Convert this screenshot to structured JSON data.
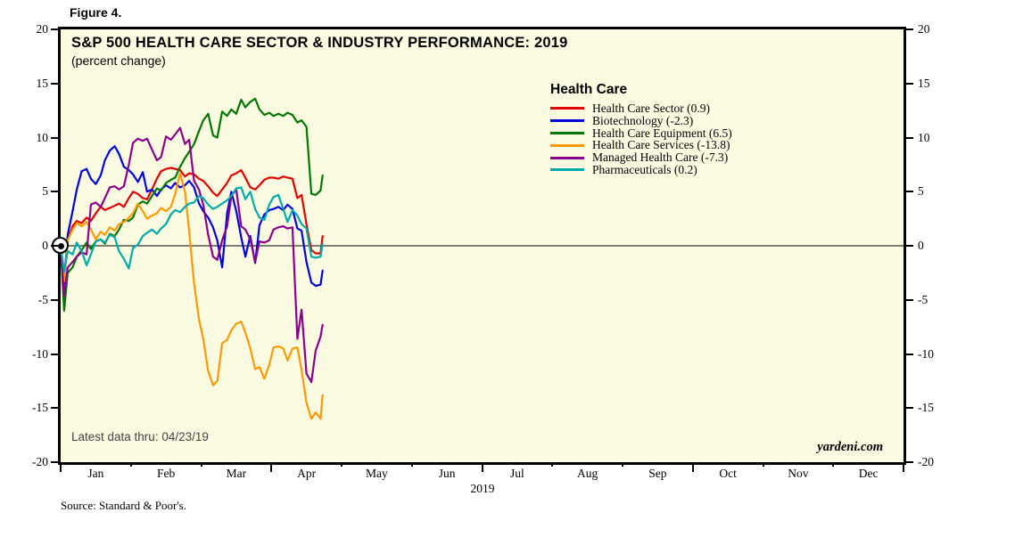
{
  "figure_label": "Figure 4.",
  "header": {
    "title": "S&P 500 HEALTH CARE SECTOR & INDUSTRY PERFORMANCE: 2019",
    "subtitle": "(percent change)"
  },
  "annotations": {
    "latest_data": "Latest data thru: 04/23/19",
    "watermark": "yardeni.com",
    "source": "Source: Standard & Poor's."
  },
  "legend": {
    "heading": "Health Care",
    "items": [
      {
        "label": "Health Care Sector (0.9)",
        "color": "#e00000"
      },
      {
        "label": "Biotechnology (-2.3)",
        "color": "#0000dd"
      },
      {
        "label": "Health Care Equipment (6.5)",
        "color": "#007700"
      },
      {
        "label": "Health Care Services (-13.8)",
        "color": "#ff9900"
      },
      {
        "label": "Managed Health Care (-7.3)",
        "color": "#8b008b"
      },
      {
        "label": "Pharmaceuticals (0.2)",
        "color": "#00aaaa"
      }
    ]
  },
  "axes": {
    "y_ticks": [
      20,
      15,
      10,
      5,
      0,
      -5,
      -10,
      -15,
      -20
    ],
    "ylim": [
      -20,
      20
    ],
    "months": [
      "Jan",
      "Feb",
      "Mar",
      "Apr",
      "May",
      "Jun",
      "Jul",
      "Aug",
      "Sep",
      "Oct",
      "Nov",
      "Dec"
    ],
    "major_tick_boundaries": [
      0,
      3,
      6,
      9,
      12
    ],
    "year_label": "2019",
    "grid": "off",
    "zero_line": true
  },
  "chart_data": {
    "type": "line",
    "title": "S&P 500 HEALTH CARE SECTOR & INDUSTRY PERFORMANCE: 2019",
    "ylabel": "percent change",
    "x_unit": "months since Jan 1 2019 (data through Apr 23 2019)",
    "xlim_months": [
      0,
      12
    ],
    "ylim": [
      -20,
      20
    ],
    "start_marker": {
      "x": 0,
      "y": 0,
      "shape": "bullseye"
    },
    "x": [
      0,
      0.05,
      0.1,
      0.17,
      0.23,
      0.3,
      0.37,
      0.43,
      0.5,
      0.57,
      0.63,
      0.7,
      0.77,
      0.83,
      0.9,
      0.97,
      1.03,
      1.1,
      1.17,
      1.23,
      1.3,
      1.37,
      1.43,
      1.5,
      1.57,
      1.63,
      1.7,
      1.77,
      1.83,
      1.9,
      1.97,
      2.03,
      2.1,
      2.17,
      2.23,
      2.3,
      2.37,
      2.43,
      2.5,
      2.57,
      2.63,
      2.7,
      2.77,
      2.83,
      2.9,
      2.97,
      3.03,
      3.1,
      3.17,
      3.23,
      3.3,
      3.37,
      3.43,
      3.5,
      3.57,
      3.63,
      3.7,
      3.73
    ],
    "series": [
      {
        "name": "Health Care Sector",
        "final_value": 0.9,
        "color": "#e00000",
        "values": [
          0,
          -2.9,
          0.5,
          1.8,
          2.3,
          2.1,
          2.6,
          2.3,
          3.0,
          3.6,
          3.3,
          3.5,
          3.7,
          3.9,
          3.6,
          4.4,
          5.0,
          4.8,
          4.4,
          4.3,
          5.2,
          6.2,
          6.9,
          7.1,
          7.2,
          7.1,
          7.0,
          6.4,
          6.7,
          6.6,
          6.2,
          6.0,
          5.5,
          4.9,
          4.6,
          5.2,
          5.8,
          6.5,
          6.7,
          7.0,
          6.3,
          5.4,
          5.2,
          5.6,
          6.1,
          6.3,
          6.3,
          6.2,
          6.4,
          6.3,
          6.2,
          4.4,
          4.7,
          2.0,
          -0.4,
          -0.7,
          -0.7,
          0.9
        ]
      },
      {
        "name": "Biotechnology",
        "final_value": -2.3,
        "color": "#0000dd",
        "values": [
          0,
          -3.5,
          1.0,
          3.2,
          5.2,
          6.9,
          7.1,
          6.2,
          5.7,
          6.5,
          7.9,
          8.8,
          9.2,
          8.5,
          7.3,
          7.0,
          6.6,
          5.9,
          6.8,
          5.0,
          5.2,
          4.6,
          5.2,
          5.6,
          5.3,
          5.8,
          5.4,
          5.6,
          6.0,
          5.4,
          3.9,
          3.2,
          2.6,
          1.7,
          0.5,
          -2.0,
          3.0,
          5.0,
          3.2,
          0.8,
          -1.0,
          0.9,
          -1.6,
          1.9,
          2.9,
          3.3,
          3.4,
          3.6,
          3.3,
          3.8,
          3.4,
          1.6,
          1.4,
          -1.5,
          -3.4,
          -3.7,
          -3.6,
          -2.3
        ]
      },
      {
        "name": "Health Care Equipment",
        "final_value": 6.5,
        "color": "#007700",
        "values": [
          0,
          -6.0,
          -2.5,
          -2.0,
          -1.0,
          -0.4,
          0.3,
          -0.3,
          0.4,
          0.6,
          0.2,
          1.1,
          0.9,
          1.5,
          2.4,
          2.3,
          2.6,
          3.8,
          4.1,
          3.9,
          4.6,
          5.3,
          5.1,
          5.8,
          6.1,
          6.3,
          7.3,
          8.1,
          8.7,
          9.4,
          10.6,
          11.6,
          12.2,
          10.2,
          10.0,
          12.4,
          12.0,
          12.6,
          12.2,
          13.5,
          12.8,
          13.3,
          13.6,
          12.6,
          12.1,
          12.3,
          12.0,
          12.2,
          12.0,
          12.3,
          12.1,
          11.4,
          11.6,
          11.0,
          4.8,
          4.7,
          5.1,
          6.5
        ]
      },
      {
        "name": "Health Care Services",
        "final_value": -13.8,
        "color": "#ff9900",
        "values": [
          0,
          -3.3,
          0.5,
          1.5,
          2.1,
          1.8,
          2.2,
          1.5,
          0.6,
          1.3,
          1.0,
          1.7,
          1.4,
          2.0,
          2.2,
          2.6,
          3.0,
          3.9,
          3.2,
          2.5,
          2.8,
          3.0,
          3.5,
          3.2,
          3.6,
          4.8,
          6.7,
          5.0,
          1.3,
          -3.5,
          -6.8,
          -8.6,
          -11.6,
          -12.9,
          -12.5,
          -9.0,
          -8.7,
          -7.8,
          -7.2,
          -7.0,
          -8.0,
          -9.5,
          -11.4,
          -11.2,
          -12.3,
          -11.0,
          -9.4,
          -9.3,
          -9.5,
          -10.6,
          -9.5,
          -9.4,
          -11.5,
          -14.5,
          -16.0,
          -15.4,
          -16.0,
          -13.8
        ]
      },
      {
        "name": "Managed Health Care",
        "final_value": -7.3,
        "color": "#8b008b",
        "values": [
          0,
          -4.7,
          -2.0,
          -1.5,
          -1.0,
          -0.6,
          -0.8,
          3.8,
          4.0,
          3.6,
          4.4,
          5.4,
          5.5,
          5.2,
          5.5,
          7.5,
          9.5,
          9.9,
          9.7,
          9.9,
          8.9,
          7.9,
          8.2,
          10.1,
          9.8,
          10.3,
          10.9,
          9.4,
          9.8,
          6.0,
          5.2,
          3.8,
          1.0,
          -1.0,
          -1.3,
          0.5,
          1.8,
          4.6,
          5.2,
          1.8,
          1.5,
          0.6,
          -1.5,
          0.4,
          0.3,
          0.5,
          1.5,
          1.7,
          1.8,
          1.6,
          1.7,
          -8.6,
          -5.9,
          -11.8,
          -12.6,
          -9.7,
          -8.4,
          -7.3
        ]
      },
      {
        "name": "Pharmaceuticals",
        "final_value": 0.2,
        "color": "#00aaaa",
        "values": [
          0,
          -2.4,
          -0.5,
          -0.8,
          0.3,
          -0.5,
          -1.8,
          -0.8,
          0.4,
          0.6,
          0.3,
          1.0,
          0.8,
          -0.5,
          -1.2,
          -2.1,
          -0.2,
          0.1,
          0.9,
          1.2,
          1.5,
          1.1,
          1.6,
          2.0,
          2.9,
          3.3,
          3.1,
          3.6,
          3.9,
          4.0,
          4.6,
          4.4,
          3.8,
          3.4,
          3.6,
          3.9,
          4.2,
          4.6,
          5.3,
          5.4,
          4.3,
          5.0,
          3.4,
          2.6,
          2.4,
          3.8,
          4.5,
          4.7,
          3.4,
          2.2,
          3.3,
          2.8,
          2.0,
          1.6,
          -1.0,
          -1.1,
          -1.0,
          0.2
        ]
      }
    ]
  }
}
